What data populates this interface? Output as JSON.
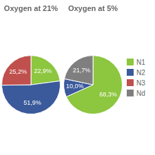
{
  "chart_data": [
    {
      "type": "pie",
      "title": "Oxygen at 21%",
      "categories": [
        "N1",
        "N2",
        "N3"
      ],
      "values": [
        22.9,
        51.9,
        25.2
      ],
      "value_labels": [
        "22,9%",
        "51,9%",
        "25,2%"
      ],
      "colors": [
        "#8DC63F",
        "#3A5A9B",
        "#C0504D"
      ],
      "data_labels": true,
      "legend": "right"
    },
    {
      "type": "pie",
      "title": "Oxygen at 5%",
      "categories": [
        "N1",
        "N2",
        "Nd"
      ],
      "values": [
        68.3,
        10.0,
        21.7
      ],
      "value_labels": [
        "68,3%",
        "10,0%",
        "21,7%"
      ],
      "colors": [
        "#8DC63F",
        "#3A5A9B",
        "#7F7F7F"
      ],
      "data_labels": true,
      "legend": "right"
    }
  ]
}
